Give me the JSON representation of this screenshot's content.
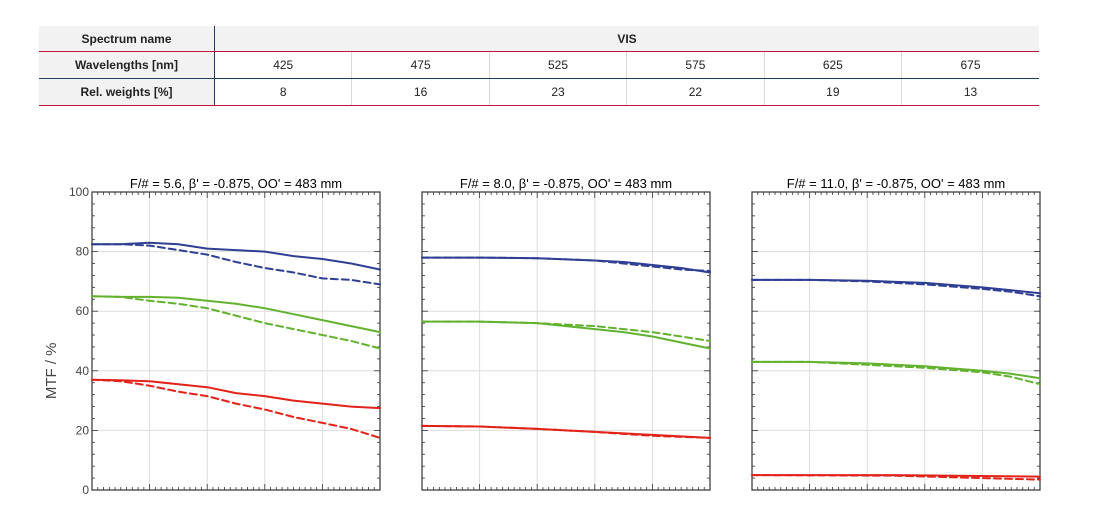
{
  "table": {
    "header_label": "Spectrum name",
    "spectrum": "VIS",
    "wavelength_label": "Wavelengths [nm]",
    "wavelengths": [
      "425",
      "475",
      "525",
      "575",
      "625",
      "675"
    ],
    "weights_label": "Rel. weights [%]",
    "weights": [
      "8",
      "16",
      "23",
      "22",
      "19",
      "13"
    ]
  },
  "colors": {
    "blue": "#2f3f93",
    "green": "#62b22f",
    "red": "#e2231a",
    "frame": "#333333",
    "grid": "#dddddd",
    "accent_line": "#c0143c",
    "table_divider": "#1d3c5e"
  },
  "chart_data": [
    {
      "type": "line",
      "title": "F/# = 5.6, β' = -0.875, OO' = 483 mm",
      "ylabel": "MTF / %",
      "ylim": [
        0,
        100
      ],
      "yticks": [
        "0",
        "20",
        "40",
        "60",
        "80",
        "100"
      ],
      "xlim": [
        0,
        1
      ],
      "grid": true,
      "series": [
        {
          "color": "blue",
          "dash": false,
          "x": [
            0,
            0.1,
            0.2,
            0.3,
            0.4,
            0.5,
            0.6,
            0.7,
            0.8,
            0.9,
            1.0
          ],
          "y": [
            82.5,
            82.5,
            83,
            82.5,
            81,
            80.5,
            80,
            78.5,
            77.5,
            76,
            74
          ]
        },
        {
          "color": "blue",
          "dash": true,
          "x": [
            0,
            0.1,
            0.2,
            0.3,
            0.4,
            0.5,
            0.6,
            0.7,
            0.8,
            0.9,
            1.0
          ],
          "y": [
            82.5,
            82.5,
            82,
            80.5,
            79,
            76.5,
            74.5,
            73,
            71,
            70.5,
            69
          ]
        },
        {
          "color": "green",
          "dash": false,
          "x": [
            0,
            0.1,
            0.2,
            0.3,
            0.4,
            0.5,
            0.6,
            0.7,
            0.8,
            0.9,
            1.0
          ],
          "y": [
            65,
            64.8,
            64.8,
            64.5,
            63.5,
            62.5,
            61,
            59,
            57,
            55,
            53
          ]
        },
        {
          "color": "green",
          "dash": true,
          "x": [
            0,
            0.1,
            0.2,
            0.3,
            0.4,
            0.5,
            0.6,
            0.7,
            0.8,
            0.9,
            1.0
          ],
          "y": [
            65,
            64.8,
            63.5,
            62.5,
            61,
            58.5,
            56,
            54,
            52,
            50,
            47.5
          ]
        },
        {
          "color": "red",
          "dash": false,
          "x": [
            0,
            0.1,
            0.2,
            0.3,
            0.4,
            0.5,
            0.6,
            0.7,
            0.8,
            0.9,
            1.0
          ],
          "y": [
            37,
            36.8,
            36.5,
            35.5,
            34.5,
            32.5,
            31.5,
            30,
            29,
            28,
            27.5
          ]
        },
        {
          "color": "red",
          "dash": true,
          "x": [
            0,
            0.1,
            0.2,
            0.3,
            0.4,
            0.5,
            0.6,
            0.7,
            0.8,
            0.9,
            1.0
          ],
          "y": [
            37,
            36.5,
            35,
            33,
            31.5,
            29,
            27,
            24.5,
            22.5,
            20.5,
            17.5
          ]
        }
      ]
    },
    {
      "type": "line",
      "title": "F/# = 8.0, β' = -0.875, OO' = 483 mm",
      "ylim": [
        0,
        100
      ],
      "xlim": [
        0,
        1
      ],
      "grid": true,
      "series": [
        {
          "color": "blue",
          "dash": false,
          "x": [
            0,
            0.2,
            0.4,
            0.6,
            0.7,
            0.8,
            0.9,
            1.0
          ],
          "y": [
            78,
            78,
            77.8,
            77,
            76.5,
            75.5,
            74.5,
            73
          ]
        },
        {
          "color": "blue",
          "dash": true,
          "x": [
            0,
            0.2,
            0.4,
            0.6,
            0.7,
            0.8,
            0.9,
            1.0
          ],
          "y": [
            78,
            78,
            77.8,
            77,
            76,
            75,
            74,
            73.5
          ]
        },
        {
          "color": "green",
          "dash": false,
          "x": [
            0,
            0.2,
            0.4,
            0.5,
            0.6,
            0.7,
            0.8,
            0.9,
            1.0
          ],
          "y": [
            56.5,
            56.5,
            56,
            55,
            54,
            53,
            51.5,
            49.5,
            47.5
          ]
        },
        {
          "color": "green",
          "dash": true,
          "x": [
            0,
            0.2,
            0.4,
            0.5,
            0.6,
            0.7,
            0.8,
            0.9,
            1.0
          ],
          "y": [
            56.5,
            56.5,
            56,
            55.5,
            55,
            54,
            53,
            51.5,
            50
          ]
        },
        {
          "color": "red",
          "dash": false,
          "x": [
            0,
            0.2,
            0.4,
            0.6,
            0.8,
            1.0
          ],
          "y": [
            21.5,
            21.3,
            20.5,
            19.5,
            18.5,
            17.5
          ]
        },
        {
          "color": "red",
          "dash": true,
          "x": [
            0,
            0.2,
            0.4,
            0.6,
            0.8,
            1.0
          ],
          "y": [
            21.5,
            21.3,
            20.5,
            19.5,
            18.2,
            17.5
          ]
        }
      ]
    },
    {
      "type": "line",
      "title": "F/# = 11.0, β' = -0.875, OO' = 483 mm",
      "ylim": [
        0,
        100
      ],
      "xlim": [
        0,
        1
      ],
      "grid": true,
      "series": [
        {
          "color": "blue",
          "dash": false,
          "x": [
            0,
            0.2,
            0.4,
            0.6,
            0.8,
            0.9,
            1.0
          ],
          "y": [
            70.5,
            70.5,
            70.2,
            69.5,
            68,
            67,
            66
          ]
        },
        {
          "color": "blue",
          "dash": true,
          "x": [
            0,
            0.2,
            0.4,
            0.6,
            0.8,
            0.9,
            1.0
          ],
          "y": [
            70.5,
            70.5,
            70,
            69,
            67.5,
            66.5,
            65
          ]
        },
        {
          "color": "green",
          "dash": false,
          "x": [
            0,
            0.2,
            0.4,
            0.6,
            0.8,
            0.9,
            1.0
          ],
          "y": [
            43,
            43,
            42.5,
            41.5,
            40,
            39,
            37.5
          ]
        },
        {
          "color": "green",
          "dash": true,
          "x": [
            0,
            0.2,
            0.4,
            0.6,
            0.8,
            0.9,
            1.0
          ],
          "y": [
            43,
            43,
            42,
            41,
            39.5,
            38,
            35.5
          ]
        },
        {
          "color": "red",
          "dash": false,
          "x": [
            0,
            0.5,
            1.0
          ],
          "y": [
            5,
            5,
            4.5
          ]
        },
        {
          "color": "red",
          "dash": true,
          "x": [
            0,
            0.5,
            0.8,
            1.0
          ],
          "y": [
            5,
            4.8,
            4,
            3.5
          ]
        }
      ]
    }
  ]
}
